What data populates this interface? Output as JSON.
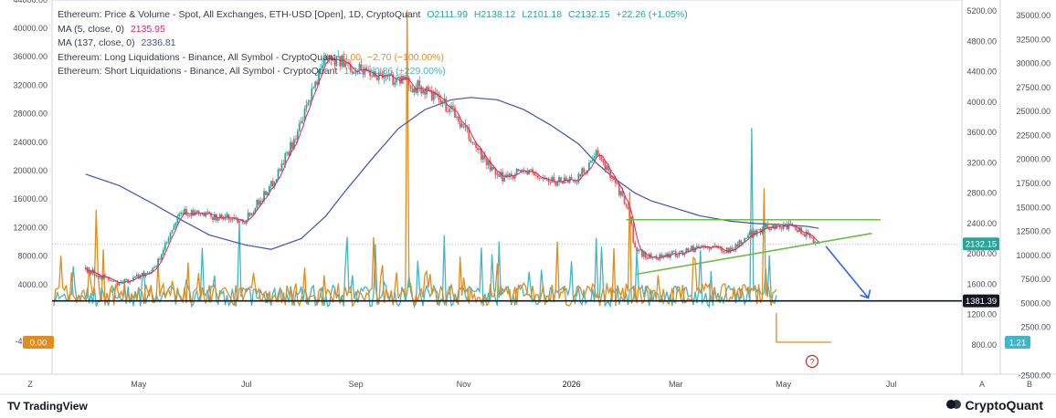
{
  "legend": {
    "price": {
      "title": "Ethereum: Price & Volume - Spot, All Exchanges, ETH-USD [Open], 1D, CryptoQuant",
      "open": "O2111.99",
      "high": "H2138.12",
      "low": "L2101.18",
      "close": "C2132.15",
      "change": "+22.26 (+1.05%)"
    },
    "ma5": {
      "label": "MA (5, close, 0)",
      "value": "2135.95"
    },
    "ma137": {
      "label": "MA (137, close, 0)",
      "value": "2336.81"
    },
    "long_liq": {
      "label": "Ethereum: Long Liquidations - Binance, All Symbol - CryptoQuant",
      "value": "0.00",
      "change": "−2.70 (−100.00%)"
    },
    "short_liq": {
      "label": "Ethereum: Short Liquidations - Binance, All Symbol - CryptoQuant",
      "value": "1.21",
      "change": "+0.86 (+229.00%)"
    }
  },
  "branding": {
    "left": "TradingView",
    "left_mark": "TV",
    "right": "CryptoQuant"
  },
  "colors": {
    "candle_up": "#26a69a",
    "candle_down": "#ef5350",
    "ma5": "#e91e63",
    "ma137": "#3f51b5",
    "long_liq": "#e38b1c",
    "short_liq": "#3fb7c9",
    "trend": "#6abd45",
    "arrow": "#2962ff",
    "hline": "#131722",
    "marker": "#c62828",
    "price_tag": "#26a69a",
    "support_tag": "#131722"
  },
  "chart_data": [
    {
      "type": "line",
      "title": "Ethereum: Price & Volume - Spot, All Exchanges, ETH-USD [Open], 1D, CryptoQuant",
      "x_tick_labels": [
        "May",
        "Jul",
        "Sep",
        "Nov",
        "2026",
        "Mar",
        "May",
        "Jul"
      ],
      "x": [
        "2025-04-01",
        "2025-04-20",
        "2025-05-10",
        "2025-05-25",
        "2025-06-10",
        "2025-06-30",
        "2025-07-15",
        "2025-08-01",
        "2025-08-15",
        "2025-08-25",
        "2025-09-10",
        "2025-09-25",
        "2025-10-10",
        "2025-10-25",
        "2025-11-05",
        "2025-11-20",
        "2025-12-05",
        "2025-12-20",
        "2026-01-05",
        "2026-01-15",
        "2026-01-25",
        "2026-02-03",
        "2026-02-06",
        "2026-02-15",
        "2026-03-01",
        "2026-03-15",
        "2026-04-01",
        "2026-04-15",
        "2026-04-25",
        "2026-05-05",
        "2026-05-15",
        "2026-05-21"
      ],
      "y_right_axis": {
        "label": "ETH-USD",
        "range": [
          450,
          5300
        ],
        "ticks": [
          5200,
          4800,
          4400,
          4000,
          3600,
          3200,
          2800,
          2400,
          2000,
          1600,
          1200,
          800
        ]
      },
      "series": [
        {
          "name": "Ethereum: Price & Volume - Spot, All Exchanges, ETH-USD [Open], 1D, CryptoQuant",
          "values": [
            1800,
            1600,
            1800,
            2550,
            2500,
            2450,
            2900,
            3700,
            4650,
            4500,
            4400,
            4300,
            4150,
            3900,
            3500,
            3000,
            3100,
            2950,
            3000,
            3300,
            3000,
            2500,
            2050,
            1950,
            2000,
            2100,
            2050,
            2300,
            2380,
            2350,
            2250,
            2132.15
          ]
        },
        {
          "name": "MA (137, close, 0)",
          "values": [
            3050,
            2900,
            2650,
            2450,
            2250,
            2120,
            2060,
            2200,
            2500,
            2800,
            3250,
            3650,
            3900,
            4030,
            4060,
            4030,
            3900,
            3700,
            3450,
            3200,
            3000,
            2850,
            2800,
            2700,
            2600,
            2500,
            2430,
            2400,
            2390,
            2380,
            2360,
            2336.81
          ]
        }
      ],
      "last_price": 2132.15,
      "support_level": 1381.39,
      "trend_lines": [
        {
          "from": [
            "2026-02-01",
            2450
          ],
          "to": [
            "2026-06-25",
            2450
          ]
        },
        {
          "from": [
            "2026-02-06",
            1730
          ],
          "to": [
            "2026-06-20",
            2270
          ]
        }
      ],
      "projection_arrow": {
        "from": [
          "2026-05-25",
          2100
        ],
        "to": [
          "2026-06-18",
          1420
        ]
      }
    },
    {
      "type": "line",
      "title": "Binance liquidations (All Symbol) - CryptoQuant",
      "y_left_axis": {
        "range": [
          -4500,
          45000
        ],
        "ticks": [
          44000,
          40000,
          36000,
          32000,
          28000,
          24000,
          20000,
          16000,
          12000,
          8000,
          4000,
          0,
          -4000
        ]
      },
      "y_right_axis": {
        "range": [
          -3200,
          35900
        ],
        "ticks": [
          35000,
          32500,
          30000,
          27500,
          25000,
          22500,
          20000,
          17500,
          15000,
          12500,
          10000,
          7500,
          5000,
          2500,
          -2500
        ]
      },
      "spikes": [
        {
          "series": "Ethereum: Long Liquidations - Binance, All Symbol - CryptoQuant",
          "x": "2025-09-30",
          "value": 42500
        },
        {
          "series": "Ethereum: Long Liquidations - Binance, All Symbol - CryptoQuant",
          "x": "2026-02-03",
          "value": 17000
        },
        {
          "series": "Ethereum: Long Liquidations - Binance, All Symbol - CryptoQuant",
          "x": "2025-04-07",
          "value": 14500
        },
        {
          "series": "Ethereum: Long Liquidations - Binance, All Symbol - CryptoQuant",
          "x": "2026-04-20",
          "value": 17500
        },
        {
          "series": "Ethereum: Short Liquidations - Binance, All Symbol - CryptoQuant",
          "x": "2026-04-13",
          "value": 26000
        },
        {
          "series": "Ethereum: Short Liquidations - Binance, All Symbol - CryptoQuant",
          "x": "2025-06-27",
          "value": 13000
        }
      ],
      "last_values": {
        "long": 0.0,
        "short": 1.21
      }
    }
  ],
  "axes": {
    "x_labels": [
      "May",
      "Jul",
      "Sep",
      "Nov",
      "2026",
      "Mar",
      "May",
      "Jul"
    ],
    "left_labels": [
      "44000.00",
      "40000.00",
      "36000.00",
      "32000.00",
      "28000.00",
      "24000.00",
      "20000.00",
      "16000.00",
      "12000.00",
      "8000.00",
      "4000.00",
      "-4000.00"
    ],
    "mid_labels": [
      "5200.00",
      "4800.00",
      "4400.00",
      "4000.00",
      "3600.00",
      "3200.00",
      "2800.00",
      "2400.00",
      "2000.00",
      "1600.00",
      "1200.00",
      "800.00"
    ],
    "right_labels": [
      "35000.00",
      "32500.00",
      "30000.00",
      "27500.00",
      "25000.00",
      "22500.00",
      "20000.00",
      "17500.00",
      "15000.00",
      "12500.00",
      "10000.00",
      "7500.00",
      "5000.00",
      "2500.00",
      "-2500.00"
    ],
    "tags": {
      "last_price": "2132.15",
      "support": "1381.39",
      "long_liq": "0.00",
      "short_liq": "1.21"
    },
    "corners": {
      "bottom_left": "Z",
      "bottom_mid": "A",
      "bottom_right": "B"
    },
    "marker": "?"
  }
}
